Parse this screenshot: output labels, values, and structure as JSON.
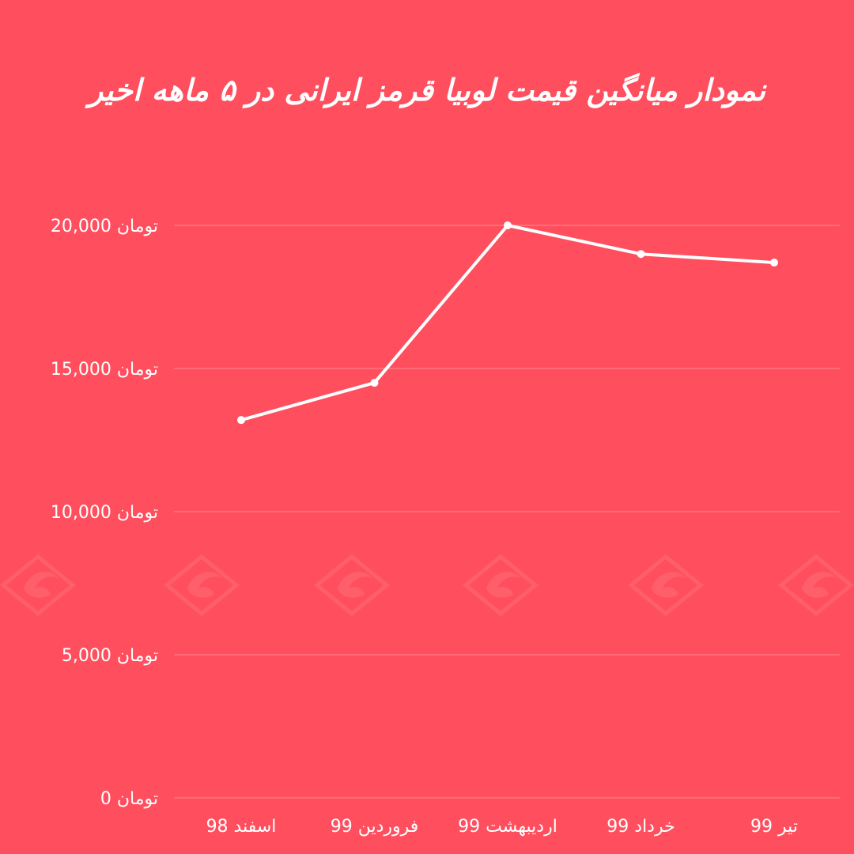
{
  "chart_data": {
    "type": "line",
    "title": "نمودار میانگین قیمت لوبیا قرمز ایرانی در ۵ ماهه اخیر",
    "categories": [
      "اسفند 98",
      "فروردین 99",
      "اردیبهشت 99",
      "خرداد 99",
      "تیر 99"
    ],
    "series": [
      {
        "values": [
          13200,
          14500,
          20000,
          19000,
          18700
        ]
      }
    ],
    "y_ticks": [
      0,
      5000,
      10000,
      15000,
      20000
    ],
    "y_tick_labels": [
      "0 تومان",
      "5,000 تومان",
      "10,000 تومان",
      "15,000 تومان",
      "20,000 تومان"
    ],
    "ylim": [
      0,
      20000
    ],
    "grid": true,
    "colors": {
      "background": "#ff4f5e",
      "line": "#ffffff",
      "grid": "#ff8a93",
      "text": "#ffffff",
      "watermark": "#ff6b77"
    }
  }
}
